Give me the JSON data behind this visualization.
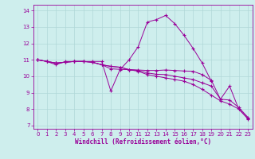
{
  "xlabel": "Windchill (Refroidissement éolien,°C)",
  "xlim": [
    -0.5,
    23.5
  ],
  "ylim": [
    6.8,
    14.35
  ],
  "yticks": [
    7,
    8,
    9,
    10,
    11,
    12,
    13,
    14
  ],
  "xticks": [
    0,
    1,
    2,
    3,
    4,
    5,
    6,
    7,
    8,
    9,
    10,
    11,
    12,
    13,
    14,
    15,
    16,
    17,
    18,
    19,
    20,
    21,
    22,
    23
  ],
  "bg_color": "#ceeeed",
  "grid_color": "#b0d8d8",
  "line_color": "#990099",
  "lines": [
    [
      11.0,
      10.9,
      10.7,
      10.9,
      10.9,
      10.9,
      10.9,
      10.9,
      9.1,
      10.4,
      11.0,
      11.8,
      13.3,
      13.45,
      13.7,
      13.2,
      12.5,
      11.7,
      10.8,
      9.7,
      null,
      null,
      null,
      null
    ],
    [
      11.0,
      10.9,
      10.8,
      10.85,
      10.9,
      10.9,
      10.85,
      10.7,
      10.45,
      10.42,
      10.4,
      10.38,
      10.35,
      10.35,
      10.38,
      10.35,
      10.32,
      10.3,
      10.1,
      9.75,
      8.6,
      9.4,
      8.0,
      7.4
    ],
    [
      11.0,
      10.9,
      10.8,
      10.85,
      10.9,
      10.9,
      10.85,
      10.7,
      10.6,
      10.55,
      10.4,
      10.35,
      10.2,
      10.12,
      10.1,
      10.0,
      9.9,
      9.8,
      9.6,
      9.4,
      8.6,
      8.55,
      8.1,
      7.5
    ],
    [
      11.0,
      10.9,
      10.8,
      10.85,
      10.9,
      10.9,
      10.85,
      10.7,
      10.6,
      10.55,
      10.4,
      10.3,
      10.1,
      10.0,
      9.9,
      9.8,
      9.7,
      9.5,
      9.2,
      8.85,
      8.5,
      8.3,
      8.0,
      7.45
    ]
  ]
}
